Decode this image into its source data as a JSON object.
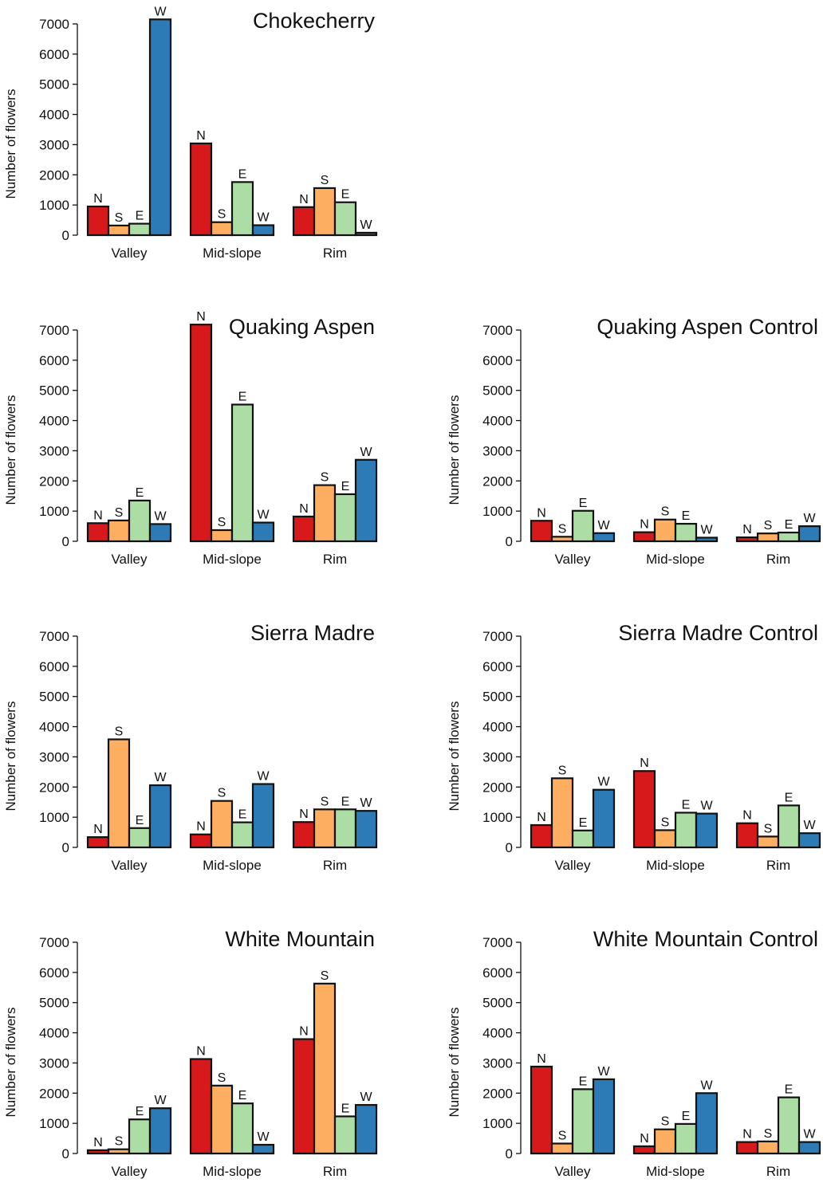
{
  "chart_data": [
    {
      "type": "bar",
      "title": "Chokecherry",
      "ylabel": "Number of flowers",
      "ylim": [
        0,
        7000
      ],
      "yticks": [
        0,
        1000,
        2000,
        3000,
        4000,
        5000,
        6000,
        7000
      ],
      "categories": [
        "Valley",
        "Mid-slope",
        "Rim"
      ],
      "series": [
        {
          "name": "N",
          "color": "#d7191c",
          "values": [
            950,
            3040,
            930
          ]
        },
        {
          "name": "S",
          "color": "#fdae61",
          "values": [
            320,
            430,
            1560
          ]
        },
        {
          "name": "E",
          "color": "#abdda4",
          "values": [
            380,
            1760,
            1090
          ]
        },
        {
          "name": "W",
          "color": "#2c7bb6",
          "values": [
            7150,
            330,
            80
          ]
        }
      ]
    },
    {
      "type": "bar",
      "title": "Quaking Aspen",
      "ylabel": "Number of flowers",
      "ylim": [
        0,
        7000
      ],
      "yticks": [
        0,
        1000,
        2000,
        3000,
        4000,
        5000,
        6000,
        7000
      ],
      "categories": [
        "Valley",
        "Mid-slope",
        "Rim"
      ],
      "series": [
        {
          "name": "N",
          "color": "#d7191c",
          "values": [
            600,
            7180,
            820
          ]
        },
        {
          "name": "S",
          "color": "#fdae61",
          "values": [
            690,
            370,
            1860
          ]
        },
        {
          "name": "E",
          "color": "#abdda4",
          "values": [
            1350,
            4530,
            1560
          ]
        },
        {
          "name": "W",
          "color": "#2c7bb6",
          "values": [
            570,
            620,
            2700
          ]
        }
      ]
    },
    {
      "type": "bar",
      "title": "Quaking Aspen Control",
      "ylabel": "Number of flowers",
      "ylim": [
        0,
        7000
      ],
      "yticks": [
        0,
        1000,
        2000,
        3000,
        4000,
        5000,
        6000,
        7000
      ],
      "categories": [
        "Valley",
        "Mid-slope",
        "Rim"
      ],
      "series": [
        {
          "name": "N",
          "color": "#d7191c",
          "values": [
            680,
            300,
            130
          ]
        },
        {
          "name": "S",
          "color": "#fdae61",
          "values": [
            150,
            720,
            260
          ]
        },
        {
          "name": "E",
          "color": "#abdda4",
          "values": [
            1010,
            580,
            290
          ]
        },
        {
          "name": "W",
          "color": "#2c7bb6",
          "values": [
            270,
            120,
            500
          ]
        }
      ]
    },
    {
      "type": "bar",
      "title": "Sierra Madre",
      "ylabel": "Number of flowers",
      "ylim": [
        0,
        7000
      ],
      "yticks": [
        0,
        1000,
        2000,
        3000,
        4000,
        5000,
        6000,
        7000
      ],
      "categories": [
        "Valley",
        "Mid-slope",
        "Rim"
      ],
      "series": [
        {
          "name": "N",
          "color": "#d7191c",
          "values": [
            340,
            430,
            840
          ]
        },
        {
          "name": "S",
          "color": "#fdae61",
          "values": [
            3580,
            1540,
            1260
          ]
        },
        {
          "name": "E",
          "color": "#abdda4",
          "values": [
            640,
            830,
            1260
          ]
        },
        {
          "name": "W",
          "color": "#2c7bb6",
          "values": [
            2060,
            2100,
            1210
          ]
        }
      ]
    },
    {
      "type": "bar",
      "title": "Sierra Madre Control",
      "ylabel": "Number of flowers",
      "ylim": [
        0,
        7000
      ],
      "yticks": [
        0,
        1000,
        2000,
        3000,
        4000,
        5000,
        6000,
        7000
      ],
      "categories": [
        "Valley",
        "Mid-slope",
        "Rim"
      ],
      "series": [
        {
          "name": "N",
          "color": "#d7191c",
          "values": [
            740,
            2530,
            800
          ]
        },
        {
          "name": "S",
          "color": "#fdae61",
          "values": [
            2290,
            570,
            360
          ]
        },
        {
          "name": "E",
          "color": "#abdda4",
          "values": [
            560,
            1150,
            1390
          ]
        },
        {
          "name": "W",
          "color": "#2c7bb6",
          "values": [
            1910,
            1120,
            470
          ]
        }
      ]
    },
    {
      "type": "bar",
      "title": "White Mountain",
      "ylabel": "Number of flowers",
      "ylim": [
        0,
        7000
      ],
      "yticks": [
        0,
        1000,
        2000,
        3000,
        4000,
        5000,
        6000,
        7000
      ],
      "categories": [
        "Valley",
        "Mid-slope",
        "Rim"
      ],
      "series": [
        {
          "name": "N",
          "color": "#d7191c",
          "values": [
            110,
            3130,
            3790
          ]
        },
        {
          "name": "S",
          "color": "#fdae61",
          "values": [
            140,
            2250,
            5630
          ]
        },
        {
          "name": "E",
          "color": "#abdda4",
          "values": [
            1130,
            1660,
            1230
          ]
        },
        {
          "name": "W",
          "color": "#2c7bb6",
          "values": [
            1500,
            290,
            1610
          ]
        }
      ]
    },
    {
      "type": "bar",
      "title": "White Mountain Control",
      "ylabel": "Number of flowers",
      "ylim": [
        0,
        7000
      ],
      "yticks": [
        0,
        1000,
        2000,
        3000,
        4000,
        5000,
        6000,
        7000
      ],
      "categories": [
        "Valley",
        "Mid-slope",
        "Rim"
      ],
      "series": [
        {
          "name": "N",
          "color": "#d7191c",
          "values": [
            2880,
            240,
            380
          ]
        },
        {
          "name": "S",
          "color": "#fdae61",
          "values": [
            330,
            800,
            400
          ]
        },
        {
          "name": "E",
          "color": "#abdda4",
          "values": [
            2130,
            980,
            1860
          ]
        },
        {
          "name": "W",
          "color": "#2c7bb6",
          "values": [
            2460,
            2000,
            380
          ]
        }
      ]
    }
  ]
}
